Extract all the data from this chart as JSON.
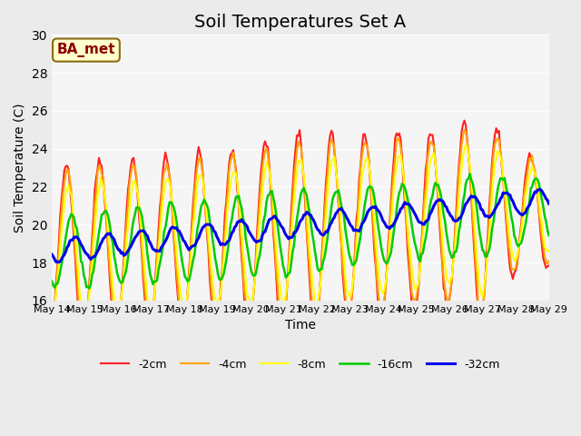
{
  "title": "Soil Temperatures Set A",
  "xlabel": "Time",
  "ylabel": "Soil Temperature (C)",
  "ylim": [
    16,
    30
  ],
  "yticks": [
    16,
    18,
    20,
    22,
    24,
    26,
    28,
    30
  ],
  "annotation": "BA_met",
  "annotation_color": "#8B0000",
  "annotation_bg": "#FFFFCC",
  "bg_color": "#EBEBEB",
  "plot_bg": "#F5F5F5",
  "series_colors": [
    "#FF2020",
    "#FFA500",
    "#FFFF00",
    "#00CC00",
    "#0000EE"
  ],
  "series_labels": [
    "-2cm",
    "-4cm",
    "-8cm",
    "-16cm",
    "-32cm"
  ],
  "series_linewidths": [
    1.5,
    1.5,
    1.5,
    1.8,
    2.2
  ],
  "start_day": 14,
  "end_day": 29,
  "points_per_day": 24,
  "title_fontsize": 14
}
